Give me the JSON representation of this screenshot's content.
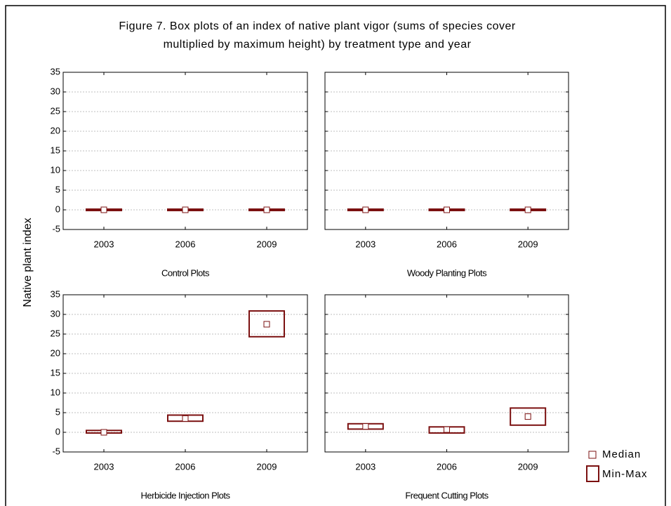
{
  "title": [
    "Figure 7. Box plots of an index of native plant vigor (sums of species cover",
    "multiplied by maximum height) by treatment type and year"
  ],
  "ylabel": "Native plant index",
  "legend": [
    "Median",
    "Min-Max"
  ],
  "chart_data": [
    {
      "type": "box",
      "xlabel": "Control Plots",
      "categories": [
        "2003",
        "2006",
        "2009"
      ],
      "median": [
        0,
        0,
        0
      ],
      "min": [
        0,
        0,
        0
      ],
      "max": [
        0,
        0,
        0
      ],
      "color": "#7b1010",
      "ylim": [
        -5,
        35
      ],
      "yticks": [
        -5,
        0,
        5,
        10,
        15,
        20,
        25,
        30,
        35
      ],
      "grid": true
    },
    {
      "type": "box",
      "xlabel": "Woody Planting Plots",
      "categories": [
        "2003",
        "2006",
        "2009"
      ],
      "median": [
        0,
        0,
        0
      ],
      "min": [
        0,
        0,
        0
      ],
      "max": [
        0,
        0,
        0
      ],
      "color": "#7b1010",
      "ylim": [
        -5,
        35
      ],
      "yticks": [
        -5,
        0,
        5,
        10,
        15,
        20,
        25,
        30,
        35
      ],
      "grid": true
    },
    {
      "type": "box",
      "xlabel": "Herbicide Injection Plots",
      "categories": [
        "2003",
        "2006",
        "2009"
      ],
      "median": [
        0,
        3.5,
        27.5
      ],
      "min": [
        0,
        3,
        24.5
      ],
      "max": [
        0.3,
        4.2,
        30.7
      ],
      "color": "#7b1010",
      "ylim": [
        -5,
        35
      ],
      "yticks": [
        -5,
        0,
        5,
        10,
        15,
        20,
        25,
        30,
        35
      ],
      "grid": true
    },
    {
      "type": "box",
      "xlabel": "Frequent Cutting Plots",
      "categories": [
        "2003",
        "2006",
        "2009"
      ],
      "median": [
        1.5,
        0.7,
        4
      ],
      "min": [
        1,
        0,
        2
      ],
      "max": [
        2,
        1.2,
        6
      ],
      "color": "#7b1010",
      "ylim": [
        -5,
        35
      ],
      "yticks": [
        -5,
        0,
        5,
        10,
        15,
        20,
        25,
        30,
        35
      ],
      "grid": true
    }
  ]
}
